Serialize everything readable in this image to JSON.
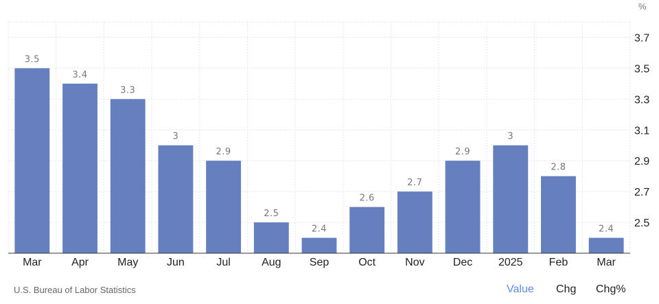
{
  "unit_label": "%",
  "source": "U.S. Bureau of Labor Statistics",
  "footer_links": [
    {
      "label": "Value",
      "active": true
    },
    {
      "label": "Chg",
      "active": false
    },
    {
      "label": "Chg%",
      "active": false
    }
  ],
  "colors": {
    "bar": "#6680bf",
    "grid": "#e6e6e6",
    "axis": "#222222",
    "label": "#777777",
    "active_link": "#5b8ce8"
  },
  "chart_data": {
    "type": "bar",
    "categories": [
      "Mar",
      "Apr",
      "May",
      "Jun",
      "Jul",
      "Aug",
      "Sep",
      "Oct",
      "Nov",
      "Dec",
      "2025",
      "Feb",
      "Mar"
    ],
    "values": [
      3.5,
      3.4,
      3.3,
      3.0,
      2.9,
      2.5,
      2.4,
      2.6,
      2.7,
      2.9,
      3.0,
      2.8,
      2.4
    ],
    "y_ticks": [
      2.5,
      2.7,
      2.9,
      3.1,
      3.3,
      3.5,
      3.7
    ],
    "ylim": [
      2.3,
      3.8
    ],
    "axis_side": "right",
    "grid": true,
    "data_labels": [
      "3.5",
      "3.4",
      "3.3",
      "3",
      "2.9",
      "2.5",
      "2.4",
      "2.6",
      "2.7",
      "2.9",
      "3",
      "2.8",
      "2.4"
    ]
  }
}
